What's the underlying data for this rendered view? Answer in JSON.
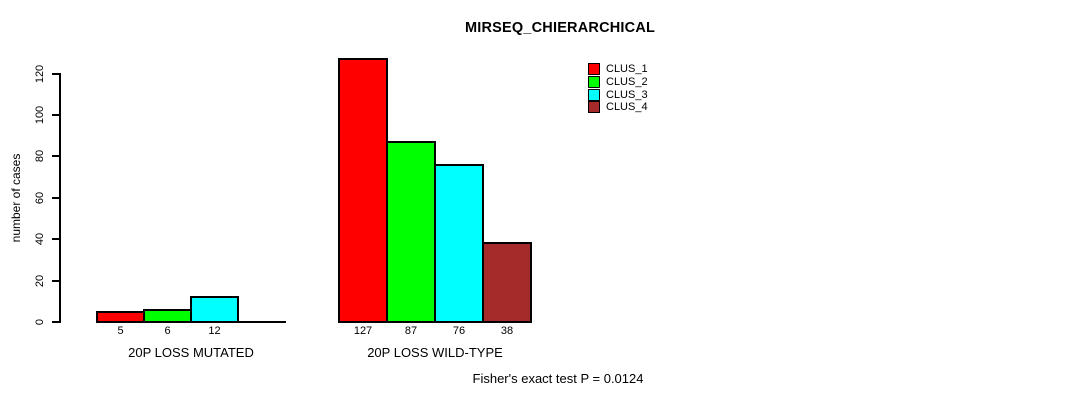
{
  "chart_data": {
    "type": "bar",
    "title": "MIRSEQ_CHIERARCHICAL",
    "ylabel": "number of cases",
    "ylim": [
      0,
      127
    ],
    "yticks": [
      0,
      20,
      40,
      60,
      80,
      100,
      120
    ],
    "grid": false,
    "legend_position": "top-right",
    "categories": [
      "20P LOSS MUTATED",
      "20P LOSS WILD-TYPE"
    ],
    "series": [
      {
        "name": "CLUS_1",
        "color": "#FF0000",
        "values": [
          5,
          127
        ]
      },
      {
        "name": "CLUS_2",
        "color": "#00FF00",
        "values": [
          6,
          87
        ]
      },
      {
        "name": "CLUS_3",
        "color": "#00FFFF",
        "values": [
          12,
          76
        ]
      },
      {
        "name": "CLUS_4",
        "color": "#A52A2A",
        "values": [
          0,
          38
        ]
      }
    ],
    "bar_value_labels": [
      [
        "5",
        "6",
        "12",
        ""
      ],
      [
        "127",
        "87",
        "76",
        "38"
      ]
    ],
    "annotation": "Fisher's exact test P = 0.0124"
  }
}
